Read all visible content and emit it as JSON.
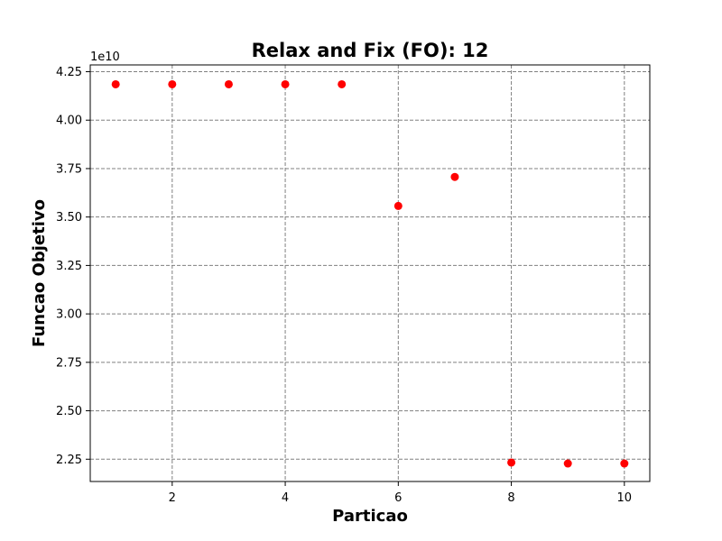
{
  "chart_data": {
    "type": "scatter",
    "title": "Relax and Fix (FO): 12",
    "xlabel": "Particao",
    "ylabel": "Funcao Objetivo",
    "y_offset_label": "1e10",
    "xlim": [
      0.55,
      10.45
    ],
    "ylim": [
      2.135,
      4.285
    ],
    "x_ticks": [
      2,
      4,
      6,
      8,
      10
    ],
    "x_tick_labels": [
      "2",
      "4",
      "6",
      "8",
      "10"
    ],
    "y_ticks": [
      2.25,
      2.5,
      2.75,
      3.0,
      3.25,
      3.5,
      3.75,
      4.0,
      4.25
    ],
    "y_tick_labels": [
      "2.25",
      "2.50",
      "2.75",
      "3.00",
      "3.25",
      "3.50",
      "3.75",
      "4.00",
      "4.25"
    ],
    "grid": true,
    "marker_color": "#ff0000",
    "x": [
      1,
      2,
      3,
      4,
      5,
      6,
      7,
      8,
      9,
      10
    ],
    "y": [
      4.185,
      4.185,
      4.185,
      4.185,
      4.185,
      3.557,
      3.707,
      2.233,
      2.228,
      2.228
    ]
  }
}
